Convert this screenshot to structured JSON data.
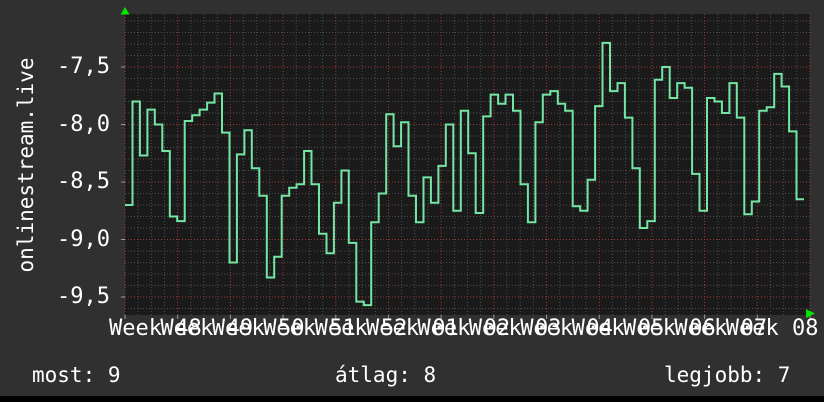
{
  "colors": {
    "background": "#303030",
    "plot_background": "#1a1a1a",
    "text": "#ffffff",
    "line": "#74e6a4",
    "grid_minor": "#4e4e4e",
    "grid_major": "#9c3a3a",
    "axis_tick": "#999999",
    "arrow": "#00e400",
    "bottom_bar": "#000000"
  },
  "stats": [
    {
      "label": "most",
      "value": "9",
      "display": "most: 9"
    },
    {
      "label": "átlag",
      "value": "8",
      "display": "átlag: 8"
    },
    {
      "label": "legjobb",
      "value": "7",
      "display": "legjobb: 7"
    }
  ],
  "chart_data": {
    "type": "line",
    "style": "step",
    "title": "onlinestream.live",
    "legend_position": "none",
    "grid": {
      "on": true,
      "minor_color": "#4e4e4e",
      "major_color": "#9c3a3a"
    },
    "x_axis": {
      "labels": [
        "Week 48",
        "Week 49",
        "Week 50",
        "Week 51",
        "Week 52",
        "Week 01",
        "Week 02",
        "Week 03",
        "Week 04",
        "Week 05",
        "Week 06",
        "Week 07",
        "Week 08"
      ],
      "weeks": 13,
      "points_per_week": 7
    },
    "y_axis": {
      "tick_labels": [
        "-7,5",
        "-8,0",
        "-8,5",
        "-9,0",
        "-9,5"
      ],
      "tick_values": [
        -7.5,
        -8.0,
        -8.5,
        -9.0,
        -9.5
      ],
      "range": [
        -9.63,
        -7.04
      ],
      "decimal_comma": true
    },
    "series": [
      {
        "name": "onlinestream.live",
        "color": "#74e6a4",
        "values": [
          -8.7,
          -7.8,
          -8.27,
          -7.87,
          -8.0,
          -8.23,
          -8.8,
          -8.84,
          -7.97,
          -7.92,
          -7.87,
          -7.81,
          -7.73,
          -8.07,
          -9.2,
          -8.26,
          -8.05,
          -8.38,
          -8.62,
          -9.33,
          -9.15,
          -8.62,
          -8.55,
          -8.52,
          -8.23,
          -8.52,
          -8.95,
          -9.12,
          -8.68,
          -8.4,
          -9.03,
          -9.54,
          -9.57,
          -8.85,
          -8.6,
          -7.91,
          -8.19,
          -7.98,
          -8.62,
          -8.85,
          -8.46,
          -8.68,
          -8.36,
          -8.0,
          -8.75,
          -7.88,
          -8.25,
          -8.77,
          -7.93,
          -7.74,
          -7.82,
          -7.74,
          -7.88,
          -8.52,
          -8.85,
          -7.98,
          -7.74,
          -7.71,
          -7.82,
          -7.88,
          -8.71,
          -8.75,
          -8.48,
          -7.84,
          -7.29,
          -7.71,
          -7.64,
          -7.94,
          -8.38,
          -8.9,
          -8.84,
          -7.61,
          -7.5,
          -7.77,
          -7.64,
          -7.68,
          -8.43,
          -8.75,
          -7.77,
          -7.8,
          -7.9,
          -7.64,
          -7.94,
          -8.78,
          -8.67,
          -7.88,
          -7.85,
          -7.56,
          -7.67,
          -8.06,
          -8.65
        ]
      }
    ]
  }
}
